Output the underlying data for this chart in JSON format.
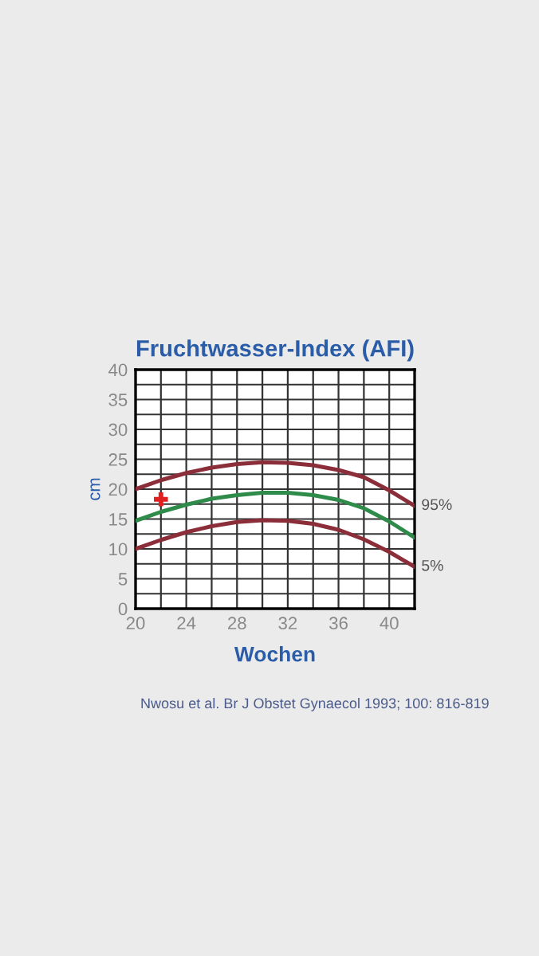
{
  "chart_data": {
    "type": "line",
    "title": "Fruchtwasser-Index (AFI)",
    "xlabel": "Wochen",
    "ylabel": "cm",
    "x": [
      20,
      22,
      24,
      26,
      28,
      30,
      32,
      34,
      36,
      38,
      40,
      42
    ],
    "series": [
      {
        "name": "95%",
        "color": "#8b2e3a",
        "values": [
          20,
          21.5,
          22.7,
          23.6,
          24.2,
          24.5,
          24.4,
          24,
          23.2,
          22,
          19.8,
          17.2
        ]
      },
      {
        "color": "#2e8b4a",
        "values": [
          14.7,
          16.2,
          17.4,
          18.4,
          19,
          19.4,
          19.4,
          19,
          18.2,
          16.8,
          14.6,
          11.9
        ]
      },
      {
        "name": "5%",
        "color": "#8b2e3a",
        "values": [
          10,
          11.5,
          12.8,
          13.8,
          14.5,
          14.8,
          14.7,
          14.2,
          13.2,
          11.6,
          9.5,
          7
        ]
      },
      {
        "type": "scatter",
        "color": "#e02020",
        "marker": "cross",
        "x": [
          22
        ],
        "values": [
          18.3
        ]
      }
    ],
    "xlim": [
      20,
      42
    ],
    "ylim": [
      0,
      40
    ],
    "xticks": [
      20,
      {
        "value": 22,
        "label": null
      },
      24,
      {
        "value": 26,
        "label": null
      },
      28,
      {
        "value": 30,
        "label": null
      },
      32,
      {
        "value": 34,
        "label": null
      },
      36,
      {
        "value": 38,
        "label": null
      },
      40
    ],
    "yticks": [
      0,
      {
        "value": 2.5,
        "label": null
      },
      5,
      {
        "value": 7.5,
        "label": null
      },
      10,
      {
        "value": 12.5,
        "label": null
      },
      15,
      {
        "value": 17.5,
        "label": null
      },
      20,
      {
        "value": 22.5,
        "label": null
      },
      25,
      {
        "value": 27.5,
        "label": null
      },
      30,
      {
        "value": 32.5,
        "label": null
      },
      35,
      {
        "value": 37.5,
        "label": null
      },
      40
    ],
    "grid": true,
    "legend": false,
    "marker": "none",
    "line_style": "solid",
    "annotations": [
      "Nwosu et al. Br J Obstet Gynaecol 1993; 100: 816-819"
    ]
  }
}
